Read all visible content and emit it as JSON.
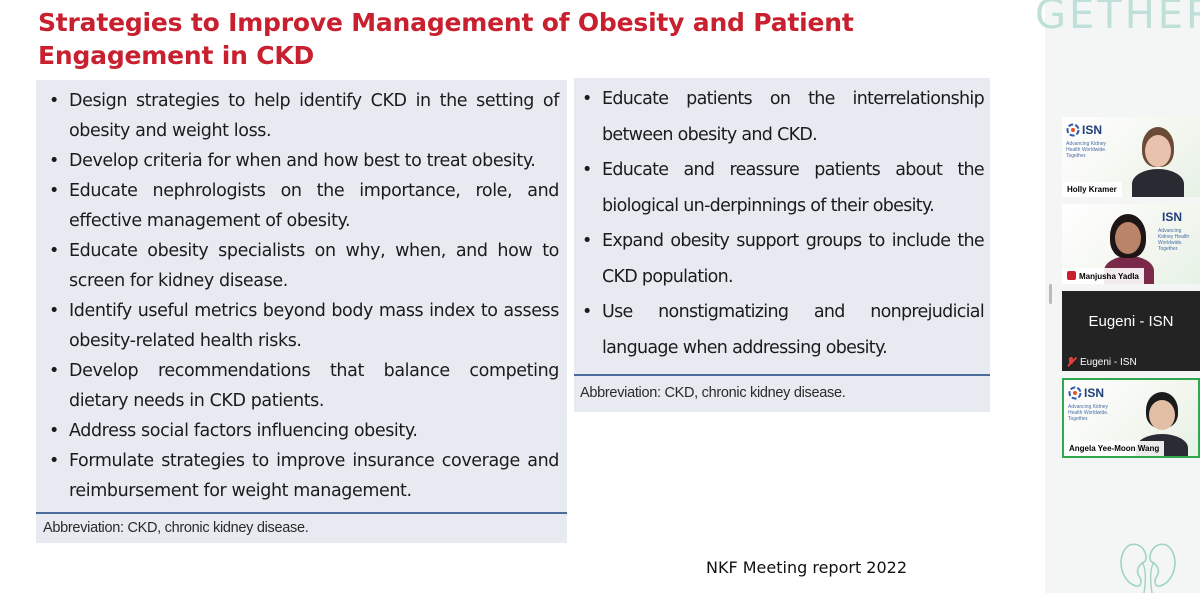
{
  "slide": {
    "title": "Strategies to Improve Management of Obesity and Patient Engagement in CKD",
    "left_items": [
      "Design strategies to help identify CKD in the setting of obesity and weight loss.",
      "Develop criteria for when and how best to treat obesity.",
      "Educate nephrologists on the importance, role, and effective management of obesity.",
      "Educate obesity specialists on why, when, and how to screen for kidney disease.",
      "Identify useful metrics beyond body mass index to assess obesity-related health risks.",
      "Develop recommendations that balance competing dietary needs in CKD patients.",
      "Address social factors influencing obesity.",
      "Formulate strategies to improve insurance coverage and reimbursement for weight management."
    ],
    "right_items": [
      "Educate patients on the interrelationship between obesity and CKD.",
      "Educate and reassure patients about the biological un-derpinnings of their obesity.",
      "Expand obesity support groups to include the CKD population.",
      "Use nonstigmatizing and nonprejudicial language when addressing obesity."
    ],
    "bullet": "•",
    "abbreviation_left": "Abbreviation: CKD, chronic kidney disease.",
    "abbreviation_right": "Abbreviation: CKD, chronic kidney disease.",
    "footer": "NKF Meeting report 2022",
    "title_color": "#c8202f"
  },
  "background_text": "GETHER.",
  "participants": [
    {
      "name": "Holly Kramer",
      "logo": "ISN",
      "tagline": "Advancing Kidney Health Worldwide. Together.",
      "video": true
    },
    {
      "name": "Manjusha Yadla",
      "logo": "ISN",
      "tagline": "Advancing Kidney Health Worldwide. Together.",
      "video": true,
      "mic_icon": "mic-icon"
    },
    {
      "name": "Eugeni - ISN",
      "display_name": "Eugeni - ISN",
      "video": false,
      "mic_icon": "mic-muted-icon"
    },
    {
      "name": "Angela Yee-Moon Wang",
      "logo": "ISN",
      "tagline": "Advancing Kidney Health Worldwide. Together.",
      "video": true,
      "active_speaker": true
    }
  ],
  "icons": {
    "decor": "kidney-icon",
    "logo": "isn-logo"
  },
  "colors": {
    "accent": "#c8202f",
    "active_border": "#2fa84f",
    "divider": "#4b6c9b",
    "box_fill": "#e7ebf1"
  }
}
